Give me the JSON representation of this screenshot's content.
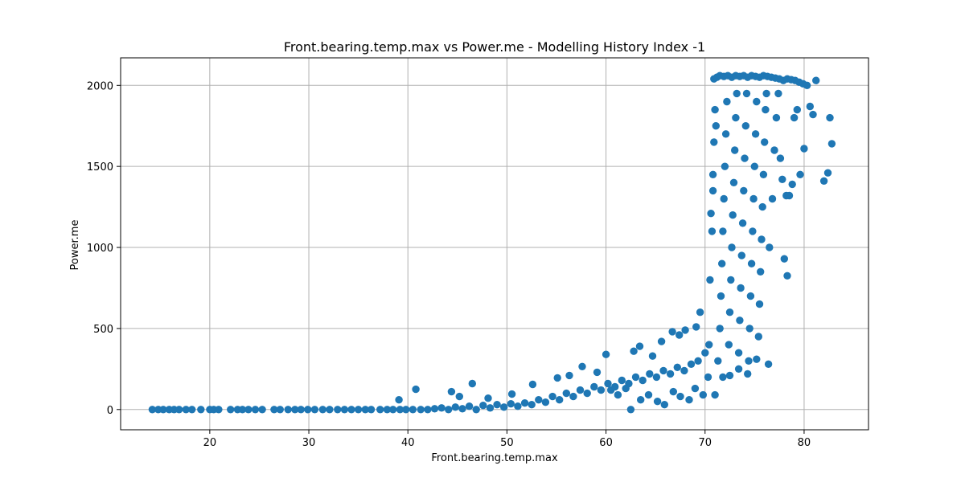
{
  "chart_data": {
    "type": "scatter",
    "title": "Front.bearing.temp.max vs Power.me - Modelling History Index -1",
    "xlabel": "Front.bearing.temp.max",
    "ylabel": "Power.me",
    "xlim": [
      11,
      86.5
    ],
    "ylim": [
      -125,
      2170
    ],
    "xticks": [
      20,
      30,
      40,
      50,
      60,
      70,
      80
    ],
    "yticks": [
      0,
      500,
      1000,
      1500,
      2000
    ],
    "grid": true,
    "legend": "none",
    "marker_color": "#1f77b4",
    "series": [
      {
        "points": [
          [
            14.2,
            0
          ],
          [
            14.8,
            0
          ],
          [
            15.3,
            0
          ],
          [
            15.9,
            0
          ],
          [
            16.4,
            0
          ],
          [
            16.9,
            0
          ],
          [
            17.6,
            0
          ],
          [
            18.2,
            0
          ],
          [
            19.1,
            0
          ],
          [
            20.0,
            0
          ],
          [
            20.4,
            0
          ],
          [
            20.9,
            0
          ],
          [
            22.1,
            0
          ],
          [
            22.8,
            0
          ],
          [
            23.3,
            0
          ],
          [
            23.9,
            0
          ],
          [
            24.6,
            0
          ],
          [
            25.3,
            0
          ],
          [
            26.5,
            0
          ],
          [
            27.1,
            0
          ],
          [
            27.9,
            0
          ],
          [
            28.6,
            0
          ],
          [
            29.2,
            0
          ],
          [
            29.9,
            0
          ],
          [
            30.6,
            0
          ],
          [
            31.4,
            0
          ],
          [
            32.1,
            0
          ],
          [
            32.9,
            0
          ],
          [
            33.6,
            0
          ],
          [
            34.3,
            0
          ],
          [
            35.0,
            0
          ],
          [
            35.7,
            0
          ],
          [
            36.3,
            0
          ],
          [
            37.2,
            0
          ],
          [
            37.9,
            0
          ],
          [
            38.5,
            0
          ],
          [
            39.2,
            0
          ],
          [
            39.8,
            0
          ],
          [
            40.5,
            0
          ],
          [
            41.3,
            0
          ],
          [
            42.0,
            0
          ],
          [
            42.7,
            5
          ],
          [
            43.4,
            10
          ],
          [
            44.1,
            0
          ],
          [
            44.8,
            15
          ],
          [
            45.5,
            5
          ],
          [
            46.2,
            20
          ],
          [
            46.9,
            0
          ],
          [
            47.6,
            25
          ],
          [
            48.3,
            10
          ],
          [
            49.0,
            30
          ],
          [
            49.7,
            15
          ],
          [
            50.4,
            35
          ],
          [
            51.1,
            20
          ],
          [
            51.8,
            40
          ],
          [
            52.5,
            30
          ],
          [
            53.2,
            60
          ],
          [
            53.9,
            45
          ],
          [
            54.6,
            80
          ],
          [
            55.3,
            60
          ],
          [
            56.0,
            100
          ],
          [
            56.7,
            80
          ],
          [
            57.4,
            120
          ],
          [
            58.1,
            100
          ],
          [
            58.8,
            140
          ],
          [
            59.5,
            120
          ],
          [
            60.2,
            160
          ],
          [
            60.9,
            140
          ],
          [
            61.6,
            180
          ],
          [
            62.3,
            160
          ],
          [
            63.0,
            200
          ],
          [
            63.7,
            180
          ],
          [
            64.4,
            220
          ],
          [
            65.1,
            200
          ],
          [
            65.8,
            240
          ],
          [
            66.5,
            220
          ],
          [
            67.2,
            260
          ],
          [
            67.9,
            240
          ],
          [
            68.6,
            280
          ],
          [
            69.3,
            300
          ],
          [
            70.0,
            350
          ],
          [
            70.4,
            400
          ],
          [
            39.1,
            60
          ],
          [
            40.8,
            125
          ],
          [
            44.4,
            110
          ],
          [
            45.2,
            80
          ],
          [
            46.5,
            160
          ],
          [
            48.1,
            70
          ],
          [
            50.5,
            95
          ],
          [
            52.6,
            155
          ],
          [
            55.1,
            195
          ],
          [
            56.3,
            210
          ],
          [
            57.6,
            265
          ],
          [
            59.1,
            230
          ],
          [
            60.0,
            340
          ],
          [
            62.8,
            360
          ],
          [
            63.4,
            390
          ],
          [
            64.7,
            330
          ],
          [
            65.6,
            420
          ],
          [
            66.7,
            480
          ],
          [
            67.4,
            460
          ],
          [
            68.0,
            490
          ],
          [
            69.1,
            510
          ],
          [
            69.5,
            600
          ],
          [
            60.5,
            120
          ],
          [
            61.2,
            90
          ],
          [
            62.0,
            130
          ],
          [
            62.5,
            0
          ],
          [
            63.5,
            60
          ],
          [
            64.3,
            90
          ],
          [
            65.2,
            50
          ],
          [
            65.9,
            30
          ],
          [
            66.8,
            110
          ],
          [
            67.5,
            80
          ],
          [
            68.4,
            60
          ],
          [
            69.0,
            130
          ],
          [
            69.8,
            90
          ],
          [
            70.3,
            200
          ],
          [
            70.5,
            800
          ],
          [
            70.7,
            1100
          ],
          [
            70.8,
            1450
          ],
          [
            70.9,
            1650
          ],
          [
            71.0,
            1850
          ],
          [
            70.9,
            2040
          ],
          [
            71.2,
            2050
          ],
          [
            71.5,
            2060
          ],
          [
            71.9,
            2055
          ],
          [
            72.3,
            2060
          ],
          [
            72.7,
            2050
          ],
          [
            73.1,
            2060
          ],
          [
            73.5,
            2055
          ],
          [
            73.9,
            2060
          ],
          [
            74.3,
            2050
          ],
          [
            74.7,
            2060
          ],
          [
            75.1,
            2055
          ],
          [
            75.5,
            2050
          ],
          [
            75.9,
            2060
          ],
          [
            76.3,
            2055
          ],
          [
            76.7,
            2050
          ],
          [
            77.1,
            2045
          ],
          [
            77.5,
            2040
          ],
          [
            77.9,
            2030
          ],
          [
            78.3,
            2040
          ],
          [
            78.7,
            2035
          ],
          [
            79.1,
            2030
          ],
          [
            79.5,
            2020
          ],
          [
            79.9,
            2010
          ],
          [
            80.3,
            2000
          ],
          [
            81.2,
            2030
          ],
          [
            71.3,
            300
          ],
          [
            71.5,
            500
          ],
          [
            71.6,
            700
          ],
          [
            71.7,
            900
          ],
          [
            71.8,
            1100
          ],
          [
            71.9,
            1300
          ],
          [
            72.0,
            1500
          ],
          [
            72.1,
            1700
          ],
          [
            72.2,
            1900
          ],
          [
            72.4,
            400
          ],
          [
            72.5,
            600
          ],
          [
            72.6,
            800
          ],
          [
            72.7,
            1000
          ],
          [
            72.8,
            1200
          ],
          [
            72.9,
            1400
          ],
          [
            73.0,
            1600
          ],
          [
            73.1,
            1800
          ],
          [
            73.2,
            1950
          ],
          [
            73.4,
            350
          ],
          [
            73.5,
            550
          ],
          [
            73.6,
            750
          ],
          [
            73.7,
            950
          ],
          [
            73.8,
            1150
          ],
          [
            73.9,
            1350
          ],
          [
            74.0,
            1550
          ],
          [
            74.1,
            1750
          ],
          [
            74.2,
            1950
          ],
          [
            74.4,
            300
          ],
          [
            74.5,
            500
          ],
          [
            74.6,
            700
          ],
          [
            74.7,
            900
          ],
          [
            74.8,
            1100
          ],
          [
            74.9,
            1300
          ],
          [
            75.0,
            1500
          ],
          [
            75.1,
            1700
          ],
          [
            75.2,
            1900
          ],
          [
            75.4,
            450
          ],
          [
            75.5,
            650
          ],
          [
            75.6,
            850
          ],
          [
            75.7,
            1050
          ],
          [
            75.8,
            1250
          ],
          [
            75.9,
            1450
          ],
          [
            76.0,
            1650
          ],
          [
            76.1,
            1850
          ],
          [
            76.2,
            1950
          ],
          [
            76.4,
            280
          ],
          [
            76.5,
            1000
          ],
          [
            76.8,
            1300
          ],
          [
            77.0,
            1600
          ],
          [
            77.2,
            1800
          ],
          [
            77.4,
            1950
          ],
          [
            77.6,
            1550
          ],
          [
            77.8,
            1420
          ],
          [
            78.0,
            930
          ],
          [
            78.2,
            1320
          ],
          [
            78.3,
            825
          ],
          [
            78.5,
            1320
          ],
          [
            78.8,
            1390
          ],
          [
            79.0,
            1800
          ],
          [
            79.3,
            1850
          ],
          [
            79.6,
            1450
          ],
          [
            80.0,
            1610
          ],
          [
            80.6,
            1870
          ],
          [
            80.9,
            1820
          ],
          [
            82.0,
            1410
          ],
          [
            82.4,
            1460
          ],
          [
            82.6,
            1800
          ],
          [
            82.8,
            1640
          ],
          [
            72.5,
            210
          ],
          [
            73.4,
            250
          ],
          [
            74.3,
            220
          ],
          [
            75.2,
            310
          ],
          [
            71.0,
            90
          ],
          [
            71.8,
            200
          ],
          [
            70.6,
            1210
          ],
          [
            70.8,
            1350
          ],
          [
            71.1,
            1750
          ]
        ]
      }
    ]
  }
}
